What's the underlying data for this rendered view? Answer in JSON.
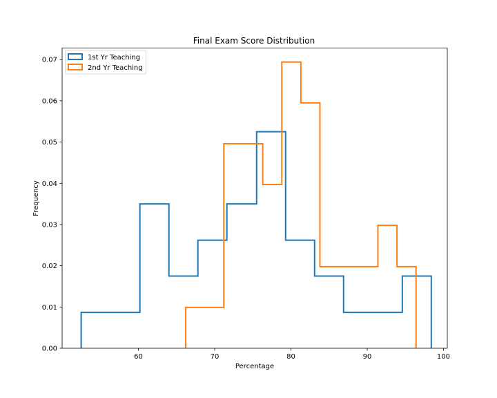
{
  "chart_data": {
    "type": "histogram",
    "title": "Final Exam Score Distribution",
    "xlabel": "Percentage",
    "ylabel": "Frequency",
    "xlim": [
      50,
      100.5
    ],
    "ylim": [
      0,
      0.0728
    ],
    "xticks": [
      60,
      70,
      80,
      90,
      100
    ],
    "yticks": [
      0.0,
      0.01,
      0.02,
      0.03,
      0.04,
      0.05,
      0.06,
      0.07
    ],
    "ytick_labels": [
      "0.00",
      "0.01",
      "0.02",
      "0.03",
      "0.04",
      "0.05",
      "0.06",
      "0.07"
    ],
    "legend_position": "top-left",
    "grid": false,
    "series": [
      {
        "name": "1st Yr Teaching",
        "color": "#1f77b4",
        "bin_edges": [
          52.5,
          56.3,
          60.2,
          64.0,
          67.8,
          71.6,
          75.5,
          79.3,
          83.1,
          86.9,
          90.8,
          94.6,
          98.4
        ],
        "values": [
          0.0087,
          0.0087,
          0.035,
          0.0175,
          0.0262,
          0.035,
          0.0525,
          0.0262,
          0.0175,
          0.0087,
          0.0087,
          0.0175
        ]
      },
      {
        "name": "2nd Yr Teaching",
        "color": "#ff7f0e",
        "bin_edges": [
          66.2,
          68.7,
          71.2,
          73.7,
          76.3,
          78.8,
          81.3,
          83.8,
          86.3,
          88.9,
          91.4,
          93.9,
          96.4
        ],
        "values": [
          0.0099,
          0.0099,
          0.0496,
          0.0496,
          0.0397,
          0.0694,
          0.0595,
          0.0198,
          0.0198,
          0.0198,
          0.0298,
          0.0198
        ]
      }
    ]
  }
}
